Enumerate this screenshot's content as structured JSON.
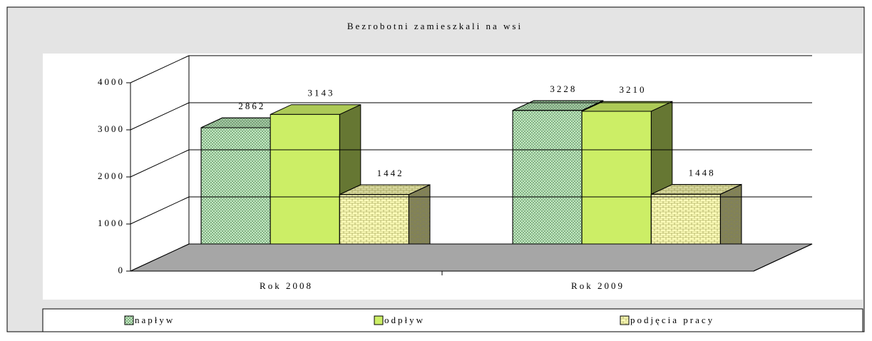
{
  "chart_data": {
    "type": "bar3d",
    "title": "Bezrobotni zamieszkali na wsi",
    "categories": [
      "Rok 2008",
      "Rok 2009"
    ],
    "series": [
      {
        "name": "napływ",
        "color": "#ccf2cc",
        "values": [
          2862,
          3228
        ]
      },
      {
        "name": "odpływ",
        "color": "#ccee66",
        "values": [
          3143,
          3210
        ]
      },
      {
        "name": "podjęcia pracy",
        "color": "#ffffbb",
        "values": [
          1442,
          1448
        ]
      }
    ],
    "ylim": [
      0,
      4000
    ],
    "yticks": [
      0,
      1000,
      2000,
      3000,
      4000
    ],
    "grid": true,
    "legend": "bottom"
  }
}
